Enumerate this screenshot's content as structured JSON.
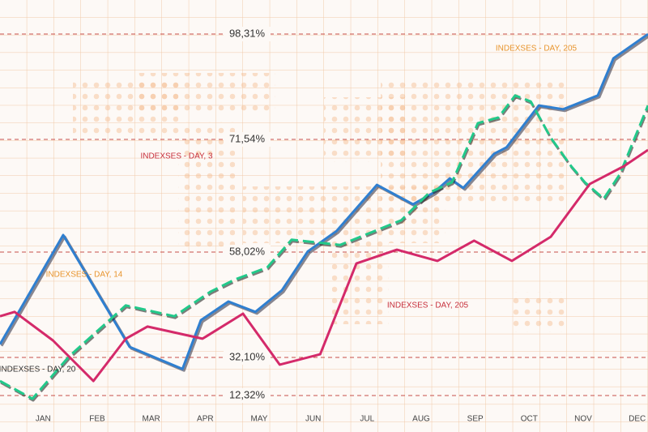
{
  "chart_data": {
    "type": "line",
    "xlim": [
      -0.8,
      11.2
    ],
    "ylim": [
      0,
      100
    ],
    "xticks": [
      {
        "value": 0,
        "label": "JAN"
      },
      {
        "value": 1,
        "label": "FEB"
      },
      {
        "value": 2,
        "label": "MAR"
      },
      {
        "value": 3,
        "label": "APR"
      },
      {
        "value": 4,
        "label": "MAY"
      },
      {
        "value": 5,
        "label": "JUN"
      },
      {
        "value": 6,
        "label": "JUL"
      },
      {
        "value": 7,
        "label": "AUG"
      },
      {
        "value": 8,
        "label": "SEP"
      },
      {
        "value": 9,
        "label": "OCT"
      },
      {
        "value": 10,
        "label": "NOV"
      },
      {
        "value": 11,
        "label": "DEC"
      }
    ],
    "levels": [
      "98,31%",
      "71,54%",
      "58,02%",
      "32,10%",
      "12,32%"
    ],
    "annotations": [
      "INDEXSES - DAY, 205",
      "INDEXSES - DAY, 3",
      "INDEXSES - DAY, 14",
      "INDEXSES - DAY, 205",
      "INDEXSES - DAY, 20"
    ],
    "series": [
      {
        "color": "#2f7fd0",
        "dashed": false,
        "x": [
          -0.8,
          0.37,
          1.6,
          2.58,
          2.92,
          3.43,
          3.93,
          4.42,
          4.9,
          5.43,
          6.18,
          6.85,
          7.23,
          7.53,
          7.78,
          8.35,
          8.58,
          9.18,
          9.63,
          10.27,
          10.56,
          11.2
        ],
        "values": [
          20.3,
          45.6,
          19.7,
          14.6,
          25.9,
          30.2,
          27.8,
          32.8,
          41.8,
          46.5,
          57.2,
          52.7,
          55.4,
          58.7,
          56.5,
          64.4,
          65.9,
          75.6,
          74.7,
          77.9,
          86.5,
          92.1
        ]
      },
      {
        "color": "#22c98a",
        "dashed": true,
        "x": [
          -0.8,
          -0.2,
          0.48,
          1.53,
          2.43,
          3.1,
          3.55,
          4.15,
          4.6,
          5.5,
          6.63,
          7.15,
          7.57,
          8.05,
          8.43,
          8.74,
          9.03,
          9.4,
          9.78,
          10.03,
          10.38,
          10.68,
          11.2
        ],
        "values": [
          11.8,
          7.7,
          17.5,
          29.3,
          26.8,
          32.5,
          35.3,
          38.1,
          44.5,
          43.3,
          49.0,
          55.4,
          57.8,
          71.5,
          72.8,
          77.9,
          76.5,
          68.1,
          61.5,
          57.8,
          54.0,
          59.7,
          75.6
        ]
      },
      {
        "color": "#d42a6a",
        "dashed": false,
        "x": [
          -0.8,
          -0.53,
          0.18,
          0.93,
          1.53,
          1.93,
          2.95,
          3.7,
          4.38,
          5.13,
          5.8,
          6.55,
          7.3,
          7.98,
          8.68,
          9.4,
          10.12,
          10.75,
          11.2
        ],
        "values": [
          26.8,
          27.8,
          21.2,
          11.8,
          21.6,
          24.4,
          21.6,
          27.4,
          15.6,
          18.0,
          39.0,
          42.2,
          39.6,
          44.3,
          39.6,
          45.2,
          57.4,
          61.5,
          65.3
        ]
      }
    ]
  }
}
